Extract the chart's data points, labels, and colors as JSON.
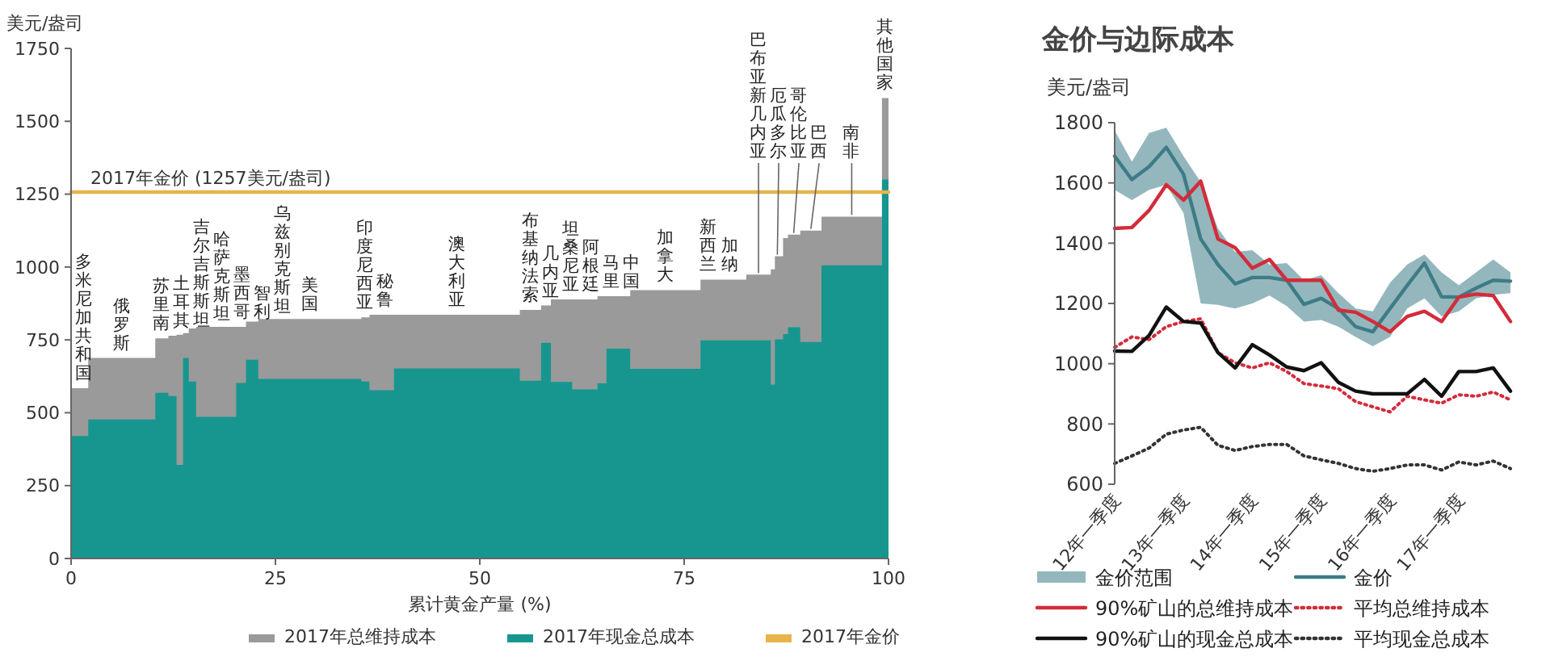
{
  "chart_data": [
    {
      "type": "area",
      "xlabel": "累计黄金产量 (%)",
      "ylabel": "美元/盎司",
      "xlim": [
        0,
        100
      ],
      "ylim": [
        0,
        1750
      ],
      "xticks": [
        0,
        25,
        50,
        75,
        100
      ],
      "yticks": [
        0,
        250,
        500,
        750,
        1000,
        1250,
        1500,
        1750
      ],
      "legend": "bottom",
      "x": [
        0,
        2.1,
        10.3,
        11.9,
        12.9,
        13.7,
        14.4,
        15.3,
        20.2,
        21.4,
        22.9,
        35.5,
        36.5,
        39.5,
        54.9,
        57.5,
        58.7,
        61.3,
        64.4,
        65.5,
        68.4,
        77.0,
        82.6,
        85.6,
        86.1,
        87.1,
        87.7,
        89.2,
        91.8,
        99.2,
        100
      ],
      "series": [
        {
          "name": "2017年总维持成本",
          "color": "#9a9a9a",
          "values": [
            584,
            688,
            755,
            764,
            768,
            773,
            789,
            795,
            795,
            813,
            822,
            827,
            836,
            836,
            853,
            868,
            889,
            889,
            900,
            900,
            921,
            957,
            974,
            992,
            1037,
            1099,
            1111,
            1125,
            1173,
            1580,
            1580
          ]
        },
        {
          "name": "2017年现金总成本",
          "color": "#17968f",
          "values": [
            420,
            477,
            568,
            557,
            321,
            688,
            607,
            486,
            602,
            682,
            616,
            607,
            577,
            652,
            610,
            740,
            606,
            580,
            601,
            720,
            651,
            748,
            748,
            597,
            752,
            770,
            793,
            743,
            1006,
            1300,
            1300
          ]
        },
        {
          "name": "2017年金价",
          "type": "line",
          "color": "#e8b44a",
          "x": [
            0,
            100
          ],
          "values": [
            1257,
            1257
          ]
        }
      ],
      "annotations": [
        "2017年金价 (1257美元/盎司)",
        {
          "text": "多米尼加共和国",
          "x": 1.0,
          "y": 584
        },
        {
          "text": "俄罗斯",
          "x": 6.2,
          "y": 688
        },
        {
          "text": "苏里南",
          "x": 11.1,
          "y": 755
        },
        {
          "text": "土耳其",
          "x": 12.4,
          "y": 764
        },
        {
          "text": "吉尔吉斯斯坦",
          "x": 13.3,
          "y": 768
        },
        {
          "text": "哈萨克斯坦",
          "x": 14.8,
          "y": 789
        },
        {
          "text": "墨西哥",
          "x": 17.7,
          "y": 795
        },
        {
          "text": "智利",
          "x": 20.8,
          "y": 795
        },
        {
          "text": "乌兹别克斯坦",
          "x": 22.1,
          "y": 813
        },
        {
          "text": "美国",
          "x": 29.2,
          "y": 822
        },
        {
          "text": "印度尼西亚",
          "x": 36.0,
          "y": 827
        },
        {
          "text": "秘鲁",
          "x": 38.0,
          "y": 836
        },
        {
          "text": "澳大利亚",
          "x": 47.2,
          "y": 836
        },
        {
          "text": "布基纳法索",
          "x": 56.2,
          "y": 853
        },
        {
          "text": "几内亚",
          "x": 58.1,
          "y": 868
        },
        {
          "text": "坦桑尼亚",
          "x": 60.0,
          "y": 889
        },
        {
          "text": "阿根廷",
          "x": 62.8,
          "y": 889
        },
        {
          "text": "马里",
          "x": 64.9,
          "y": 900
        },
        {
          "text": "中国",
          "x": 66.9,
          "y": 900
        },
        {
          "text": "加拿大",
          "x": 72.7,
          "y": 921
        },
        {
          "text": "新西兰",
          "x": 78.0,
          "y": 957
        },
        {
          "text": "加纳",
          "x": 80.6,
          "y": 957
        },
        {
          "text": "巴布亚新几内亚",
          "x": 84.1,
          "y": 974
        },
        {
          "text": "厄瓜多尔",
          "x": 86.4,
          "y": 1037
        },
        {
          "text": "哥伦比亚",
          "x": 88.4,
          "y": 1111
        },
        {
          "text": "巴西",
          "x": 90.5,
          "y": 1125
        },
        {
          "text": "南非",
          "x": 95.5,
          "y": 1173
        },
        {
          "text": "其他国家",
          "x": 99.6,
          "y": 1580
        }
      ]
    },
    {
      "type": "line",
      "title": "金价与边际成本",
      "annotations": [
        "金价范围"
      ],
      "ylabel": "美元/盎司",
      "ylim": [
        600,
        1800
      ],
      "yticks": [
        600,
        800,
        1000,
        1200,
        1400,
        1600,
        1800
      ],
      "legend": "bottom",
      "categories": [
        "12年一季度",
        null,
        null,
        null,
        "13年一季度",
        null,
        null,
        null,
        "14年一季度",
        null,
        null,
        null,
        "15年一季度",
        null,
        null,
        null,
        "16年一季度",
        null,
        null,
        null,
        "17年一季度",
        null,
        null,
        null
      ],
      "series": [
        {
          "name": "金价",
          "color": "#3d7c86",
          "lower": [
            1577,
            1543,
            1577,
            1594,
            1500,
            1200,
            1195,
            1183,
            1200,
            1226,
            1191,
            1140,
            1145,
            1123,
            1089,
            1058,
            1089,
            1183,
            1217,
            1157,
            1174,
            1217,
            1229,
            1234
          ],
          "upper": [
            1774,
            1671,
            1766,
            1783,
            1689,
            1603,
            1449,
            1371,
            1377,
            1329,
            1334,
            1277,
            1294,
            1234,
            1183,
            1174,
            1269,
            1329,
            1363,
            1303,
            1260,
            1303,
            1346,
            1303
          ],
          "values": [
            1689,
            1611,
            1654,
            1718,
            1629,
            1414,
            1329,
            1265,
            1286,
            1286,
            1277,
            1197,
            1217,
            1183,
            1123,
            1106,
            1183,
            1260,
            1334,
            1222,
            1221,
            1251,
            1277,
            1274
          ]
        },
        {
          "name": "90%矿山的总维持成本",
          "color": "#d42b3a",
          "values": [
            1449,
            1452,
            1509,
            1594,
            1543,
            1606,
            1414,
            1385,
            1317,
            1346,
            1277,
            1277,
            1277,
            1178,
            1171,
            1140,
            1106,
            1157,
            1174,
            1140,
            1221,
            1231,
            1226,
            1140
          ]
        },
        {
          "name": "平均总维持成本",
          "color": "#d42b3a",
          "line_style": "dotted",
          "values": [
            1054,
            1089,
            1080,
            1123,
            1140,
            1149,
            1037,
            1003,
            986,
            1003,
            974,
            934,
            926,
            917,
            874,
            857,
            840,
            892,
            880,
            869,
            897,
            892,
            906,
            880
          ]
        },
        {
          "name": "90%矿山的现金总成本",
          "color": "#111111",
          "values": [
            1042,
            1041,
            1094,
            1188,
            1140,
            1135,
            1037,
            986,
            1063,
            1029,
            989,
            977,
            1003,
            938,
            909,
            900,
            900,
            900,
            948,
            892,
            974,
            974,
            986,
            909
          ]
        },
        {
          "name": "平均现金总成本",
          "color": "#333333",
          "line_style": "dotted",
          "values": [
            669,
            694,
            720,
            766,
            780,
            789,
            729,
            712,
            725,
            732,
            732,
            694,
            681,
            669,
            652,
            643,
            652,
            664,
            664,
            647,
            674,
            664,
            677,
            652
          ]
        }
      ]
    }
  ]
}
